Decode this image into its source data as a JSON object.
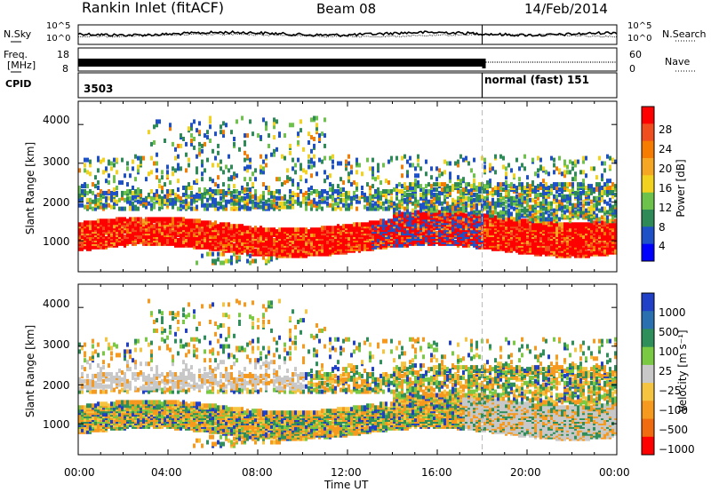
{
  "header": {
    "station": "Rankin Inlet (fitACF)",
    "beam": "Beam 08",
    "date": "14/Feb/2014"
  },
  "noise_panel": {
    "left_label": "N.Sky",
    "right_label": "N.Search",
    "left_ticks": [
      "10^5",
      "10^0"
    ],
    "right_ticks": [
      "10^5",
      "10^0"
    ]
  },
  "freq_panel": {
    "left_label_line1": "Freq.",
    "left_label_line2": "[MHz]",
    "right_label": "Nave",
    "left_ticks": [
      "18",
      "8"
    ],
    "right_ticks": [
      "60",
      "0"
    ]
  },
  "cpid": {
    "label": "CPID",
    "first": "3503",
    "second": "normal (fast) 151",
    "switch_hour": 18
  },
  "colors": {
    "power_scale": [
      "#0000ff",
      "#1e50c8",
      "#2e8b57",
      "#6cc24a",
      "#f2d21e",
      "#f5a623",
      "#f57c00",
      "#f04e1e",
      "#ff0000"
    ],
    "velocity_scale": [
      "#2040c8",
      "#2a6fb0",
      "#2f8f5a",
      "#7ac943",
      "#c8c8c8",
      "#f5c542",
      "#f59a1e",
      "#f06a10",
      "#ff0000"
    ]
  },
  "chart_data": [
    {
      "type": "heatmap",
      "quantity": "Power",
      "ylabel": "Slant Range [km]",
      "yticks": [
        1000,
        2000,
        3000,
        4000
      ],
      "ylim": [
        200,
        4600
      ],
      "xlim": [
        0,
        24
      ],
      "colorbar_label": "Power [dB]",
      "colorbar_ticks": [
        "28",
        "24",
        "20",
        "16",
        "12",
        "8",
        "4"
      ],
      "clim": [
        0,
        32
      ]
    },
    {
      "type": "heatmap",
      "quantity": "Velocity",
      "ylabel": "Slant Range [km]",
      "yticks": [
        1000,
        2000,
        3000,
        4000
      ],
      "ylim": [
        200,
        4600
      ],
      "xlim": [
        0,
        24
      ],
      "colorbar_label": "Velocity [m s⁻¹]",
      "colorbar_ticks": [
        "1000",
        "500",
        "100",
        "25",
        "−25",
        "−100",
        "−500",
        "−1000"
      ]
    }
  ],
  "xaxis": {
    "label": "Time UT",
    "ticks": [
      "00:00",
      "04:00",
      "08:00",
      "12:00",
      "16:00",
      "20:00",
      "00:00"
    ]
  }
}
